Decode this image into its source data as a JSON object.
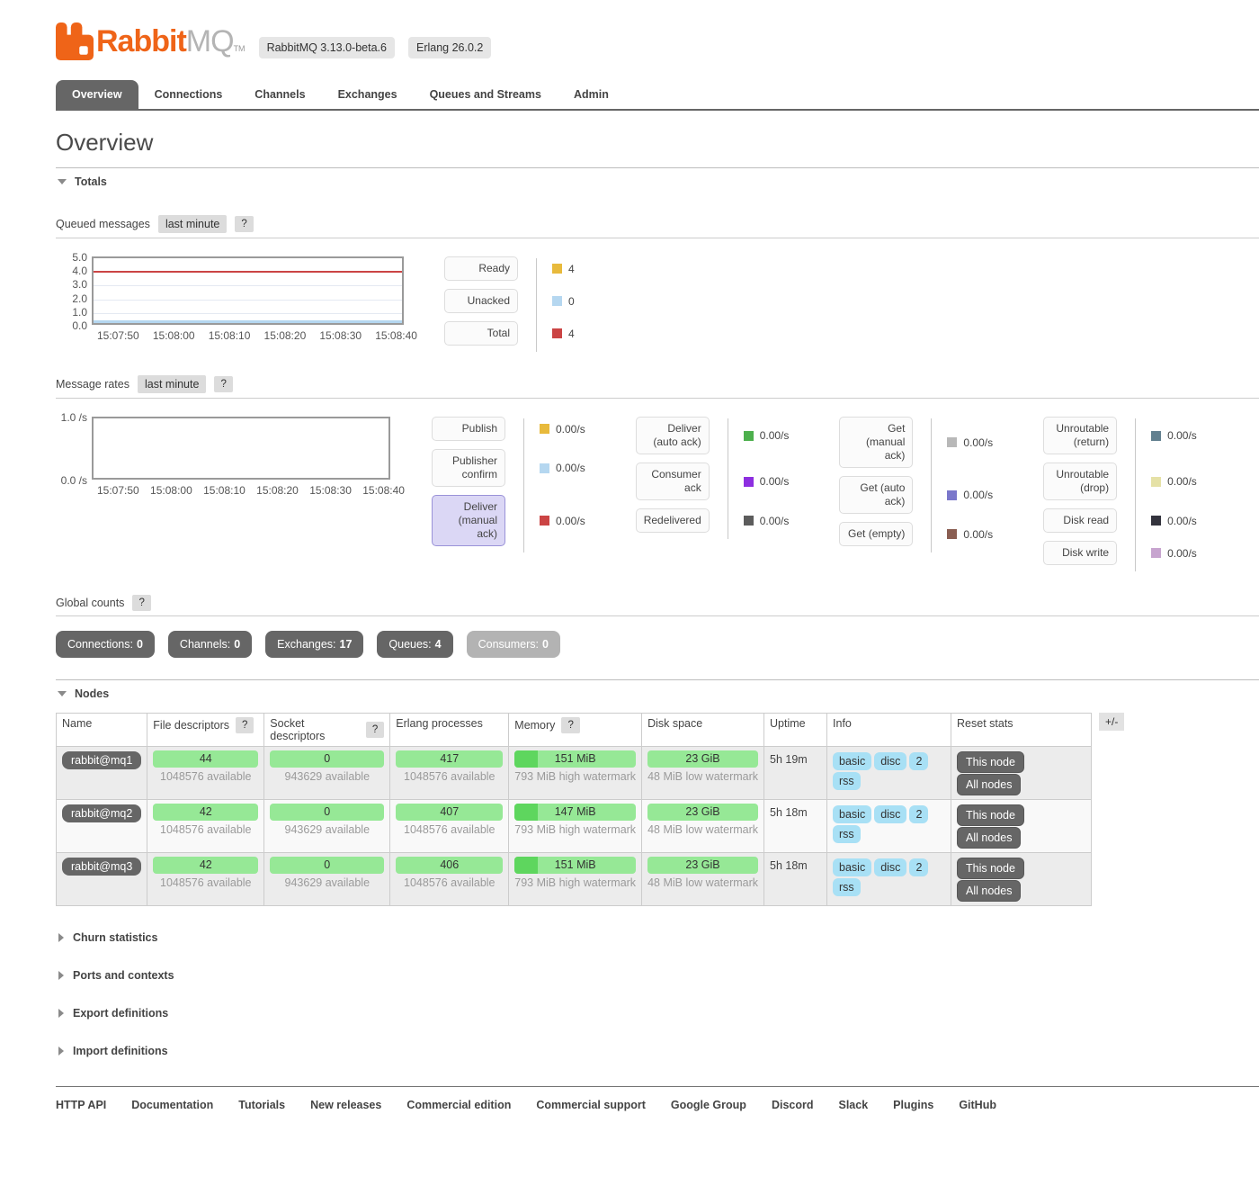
{
  "header": {
    "brand_rabbit": "Rabbit",
    "brand_mq": "MQ",
    "brand_tm": "TM",
    "badges": [
      "RabbitMQ 3.13.0-beta.6",
      "Erlang 26.0.2"
    ],
    "brand_orange": "#ef6418"
  },
  "tabs": [
    {
      "label": "Overview"
    },
    {
      "label": "Connections"
    },
    {
      "label": "Channels"
    },
    {
      "label": "Exchanges"
    },
    {
      "label": "Queues and Streams"
    },
    {
      "label": "Admin"
    }
  ],
  "page_title": "Overview",
  "totals": {
    "section_label": "Totals",
    "queued": {
      "label": "Queued messages",
      "mode": "last minute",
      "help": "?",
      "chart": {
        "type": "line",
        "ylim": [
          0,
          5
        ],
        "y_ticks": [
          "5.0",
          "4.0",
          "3.0",
          "2.0",
          "1.0",
          "0.0"
        ],
        "x_ticks": [
          "15:07:50",
          "15:08:00",
          "15:08:10",
          "15:08:20",
          "15:08:30",
          "15:08:40"
        ],
        "series": [
          {
            "name": "Ready",
            "color": "#e8ba3c",
            "constant_value": 4
          },
          {
            "name": "Unacked",
            "color": "#b5d7f0",
            "constant_value": 0
          },
          {
            "name": "Total",
            "color": "#cb4444",
            "constant_value": 4
          }
        ]
      },
      "legend": [
        {
          "label": "Ready",
          "value": "4",
          "color": "#e8ba3c"
        },
        {
          "label": "Unacked",
          "value": "0",
          "color": "#b5d7f0"
        },
        {
          "label": "Total",
          "value": "4",
          "color": "#cb4444"
        }
      ]
    },
    "rates": {
      "label": "Message rates",
      "mode": "last minute",
      "help": "?",
      "chart": {
        "type": "line",
        "y_ticks": [
          "1.0 /s",
          "0.0 /s"
        ],
        "x_ticks": [
          "15:07:50",
          "15:08:00",
          "15:08:10",
          "15:08:20",
          "15:08:30",
          "15:08:40"
        ],
        "series": []
      },
      "columns": [
        [
          {
            "label": "Publish",
            "value": "0.00/s",
            "color": "#e8ba3c"
          },
          {
            "label": "Publisher confirm",
            "value": "0.00/s",
            "color": "#b5d7f0"
          },
          {
            "label": "Deliver (manual ack)",
            "value": "0.00/s",
            "color": "#cb4444",
            "selected": true
          }
        ],
        [
          {
            "label": "Deliver (auto ack)",
            "value": "0.00/s",
            "color": "#4db04d"
          },
          {
            "label": "Consumer ack",
            "value": "0.00/s",
            "color": "#8d2ee0"
          },
          {
            "label": "Redelivered",
            "value": "0.00/s",
            "color": "#5c5c5c"
          }
        ],
        [
          {
            "label": "Get (manual ack)",
            "value": "0.00/s",
            "color": "#b8b8b8"
          },
          {
            "label": "Get (auto ack)",
            "value": "0.00/s",
            "color": "#7a77cb"
          },
          {
            "label": "Get (empty)",
            "value": "0.00/s",
            "color": "#8a5e52"
          }
        ],
        [
          {
            "label": "Unroutable (return)",
            "value": "0.00/s",
            "color": "#62808f"
          },
          {
            "label": "Unroutable (drop)",
            "value": "0.00/s",
            "color": "#e5e1a6"
          },
          {
            "label": "Disk read",
            "value": "0.00/s",
            "color": "#33333d"
          },
          {
            "label": "Disk write",
            "value": "0.00/s",
            "color": "#c7a4cf"
          }
        ]
      ]
    },
    "global_counts": {
      "label": "Global counts",
      "help": "?",
      "items": [
        {
          "label": "Connections:",
          "count": "0"
        },
        {
          "label": "Channels:",
          "count": "0"
        },
        {
          "label": "Exchanges:",
          "count": "17"
        },
        {
          "label": "Queues:",
          "count": "4"
        },
        {
          "label": "Consumers:",
          "count": "0"
        }
      ]
    }
  },
  "nodes": {
    "section_label": "Nodes",
    "help": "?",
    "toggle": "+/-",
    "columns": {
      "name": "Name",
      "fd": "File descriptors",
      "sd": "Socket descriptors",
      "proc": "Erlang processes",
      "memory": "Memory",
      "disk": "Disk space",
      "uptime": "Uptime",
      "info": "Info",
      "reset": "Reset stats"
    },
    "rows": [
      {
        "name": "rabbit@mq1",
        "fd_used": "44",
        "fd_avail": "1048576 available",
        "sd_used": "0",
        "sd_avail": "943629 available",
        "proc_used": "417",
        "proc_avail": "1048576 available",
        "mem_value": "151 MiB",
        "mem_detail": "793 MiB high watermark",
        "mem_used_percent": 19,
        "disk_value": "23 GiB",
        "disk_detail": "48 MiB low watermark",
        "uptime": "5h 19m",
        "info_badges": [
          "basic",
          "disc",
          "2",
          "rss"
        ],
        "reset_this": "This node",
        "reset_all": "All nodes"
      },
      {
        "name": "rabbit@mq2",
        "fd_used": "42",
        "fd_avail": "1048576 available",
        "sd_used": "0",
        "sd_avail": "943629 available",
        "proc_used": "407",
        "proc_avail": "1048576 available",
        "mem_value": "147 MiB",
        "mem_detail": "793 MiB high watermark",
        "mem_used_percent": 19,
        "disk_value": "23 GiB",
        "disk_detail": "48 MiB low watermark",
        "uptime": "5h 18m",
        "info_badges": [
          "basic",
          "disc",
          "2",
          "rss"
        ],
        "reset_this": "This node",
        "reset_all": "All nodes"
      },
      {
        "name": "rabbit@mq3",
        "fd_used": "42",
        "fd_avail": "1048576 available",
        "sd_used": "0",
        "sd_avail": "943629 available",
        "proc_used": "406",
        "proc_avail": "1048576 available",
        "mem_value": "151 MiB",
        "mem_detail": "793 MiB high watermark",
        "mem_used_percent": 19,
        "disk_value": "23 GiB",
        "disk_detail": "48 MiB low watermark",
        "uptime": "5h 18m",
        "info_badges": [
          "basic",
          "disc",
          "2",
          "rss"
        ],
        "reset_this": "This node",
        "reset_all": "All nodes"
      }
    ]
  },
  "collapsed_sections": [
    {
      "label": "Churn statistics"
    },
    {
      "label": "Ports and contexts"
    },
    {
      "label": "Export definitions"
    },
    {
      "label": "Import definitions"
    }
  ],
  "footer": {
    "links": [
      {
        "label": "HTTP API"
      },
      {
        "label": "Documentation"
      },
      {
        "label": "Tutorials"
      },
      {
        "label": "New releases"
      },
      {
        "label": "Commercial edition"
      },
      {
        "label": "Commercial support"
      },
      {
        "label": "Google Group"
      },
      {
        "label": "Discord"
      },
      {
        "label": "Slack"
      },
      {
        "label": "Plugins"
      },
      {
        "label": "GitHub"
      }
    ]
  }
}
